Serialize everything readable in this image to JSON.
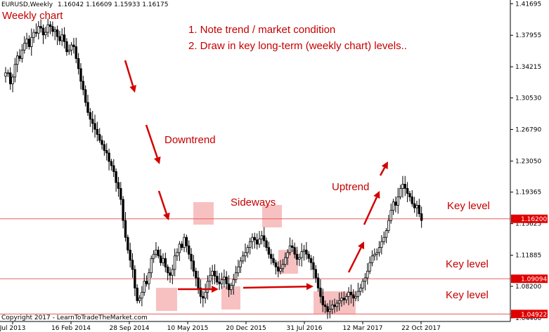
{
  "chart_data": {
    "type": "candlestick",
    "title": "EURUSD,Weekly",
    "ohlc_readout": "1.16042 1.16609 1.15933 1.16175",
    "price_axis_ticks": [
      "1.41695",
      "1.37955",
      "1.34215",
      "1.30530",
      "1.26790",
      "1.23050",
      "1.19365",
      "1.15625",
      "1.11885",
      "1.08200",
      "1.04460"
    ],
    "ylim": [
      1.042,
      1.418
    ],
    "time_axis_ticks": [
      "Jul 2013",
      "16 Feb 2014",
      "28 Sep 2014",
      "10 May 2015",
      "20 Dec 2015",
      "31 Jul 2016",
      "12 Mar 2017",
      "22 Oct 2017"
    ],
    "xlim": [
      "Jul 2013",
      "Dec 2017"
    ],
    "key_levels": [
      {
        "value": 1.162,
        "label": "1.16200"
      },
      {
        "value": 1.09094,
        "label": "1.09094"
      },
      {
        "value": 1.04922,
        "label": "1.04922"
      }
    ],
    "series": [
      {
        "values": [
          1.335,
          1.335,
          1.322,
          1.33,
          1.345,
          1.355,
          1.352,
          1.362,
          1.37,
          1.375,
          1.366,
          1.377,
          1.383,
          1.382,
          1.39,
          1.388,
          1.38,
          1.383,
          1.392,
          1.39,
          1.384,
          1.386,
          1.378,
          1.373,
          1.38,
          1.372,
          1.36,
          1.362,
          1.368,
          1.366,
          1.352,
          1.34,
          1.325,
          1.315,
          1.3,
          1.288,
          1.28,
          1.275,
          1.268,
          1.262,
          1.255,
          1.25,
          1.243,
          1.24,
          1.23,
          1.225,
          1.218,
          1.205,
          1.198,
          1.185,
          1.16,
          1.14,
          1.125,
          1.113,
          1.102,
          1.08,
          1.065,
          1.068,
          1.075,
          1.088,
          1.085,
          1.098,
          1.115,
          1.12,
          1.125,
          1.118,
          1.11,
          1.115,
          1.105,
          1.098,
          1.095,
          1.102,
          1.118,
          1.122,
          1.132,
          1.128,
          1.14,
          1.13,
          1.12,
          1.112,
          1.1,
          1.092,
          1.08,
          1.07,
          1.068,
          1.075,
          1.088,
          1.095,
          1.1,
          1.094,
          1.087,
          1.085,
          1.09,
          1.093,
          1.085,
          1.078,
          1.083,
          1.09,
          1.098,
          1.105,
          1.112,
          1.118,
          1.122,
          1.128,
          1.135,
          1.14,
          1.137,
          1.132,
          1.138,
          1.142,
          1.136,
          1.128,
          1.12,
          1.115,
          1.11,
          1.105,
          1.1,
          1.103,
          1.108,
          1.116,
          1.122,
          1.13,
          1.128,
          1.12,
          1.114,
          1.116,
          1.123,
          1.125,
          1.12,
          1.115,
          1.11,
          1.102,
          1.092,
          1.08,
          1.07,
          1.06,
          1.058,
          1.052,
          1.055,
          1.06,
          1.058,
          1.062,
          1.065,
          1.068,
          1.066,
          1.07,
          1.075,
          1.072,
          1.068,
          1.07,
          1.076,
          1.08,
          1.088,
          1.092,
          1.1,
          1.11,
          1.118,
          1.12,
          1.122,
          1.128,
          1.135,
          1.14,
          1.148,
          1.16,
          1.172,
          1.182,
          1.178,
          1.188,
          1.198,
          1.203,
          1.198,
          1.192,
          1.188,
          1.18,
          1.175,
          1.178,
          1.168,
          1.16
        ]
      }
    ],
    "grid": false
  },
  "annotations": {
    "weekly_label": "Weekly chart",
    "note1": "1. Note trend / market condition",
    "note2": "2. Draw in key long-term (weekly chart) levels..",
    "downtrend": "Downtrend",
    "sideways": "Sideways",
    "uptrend": "Uptrend",
    "key_level_1": "Key level",
    "key_level_2": "Key level",
    "key_level_3": "Key level",
    "copyright": "Copyright 2017 - LearnToTradeTheMarket.com"
  },
  "colors": {
    "candle": "#000000",
    "key_level_line": "#e06060",
    "key_level_tag": "#e00000",
    "annotation": "#c40000",
    "highlight_box": "#f4a0a0"
  }
}
